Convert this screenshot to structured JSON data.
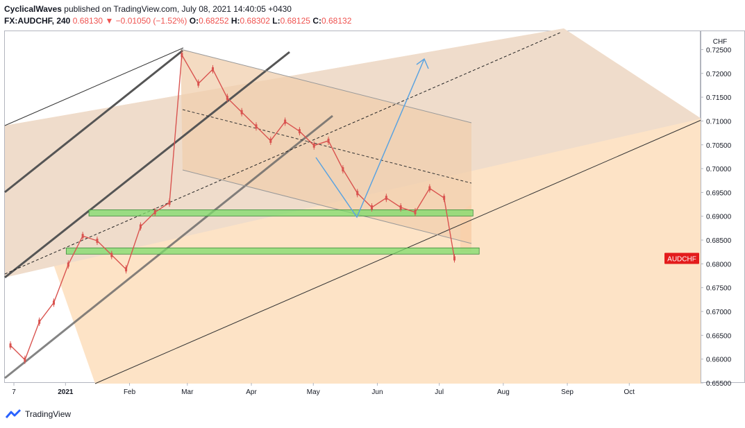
{
  "header": {
    "author": "CyclicalWaves",
    "published": "published on TradingView.com, July 08, 2021 14:40:05 +0430",
    "symbol": "FX:AUDCHF, 240",
    "last": "0.68130",
    "arrow": "▼",
    "change": "−0.01050 (−1.52%)",
    "o_label": "O:",
    "o_val": "0.68252",
    "h_label": "H:",
    "h_val": "0.68302",
    "l_label": "L:",
    "l_val": "0.68125",
    "c_label": "C:",
    "c_val": "0.68132"
  },
  "footer": {
    "brand": "TradingView"
  },
  "chart_data": {
    "type": "line",
    "currency": "CHF",
    "symbol_tag": "AUDCHF",
    "last_value": 0.6813,
    "ylim": [
      0.655,
      0.729
    ],
    "y_ticks": [
      "0.72500",
      "0.72000",
      "0.71500",
      "0.71000",
      "0.70500",
      "0.70000",
      "0.69500",
      "0.69000",
      "0.68500",
      "0.68000",
      "0.67500",
      "0.67000",
      "0.66500",
      "0.66000",
      "0.65500"
    ],
    "x_ticks": [
      "7",
      "2021",
      "Feb",
      "Mar",
      "Apr",
      "May",
      "Jun",
      "Jul",
      "Aug",
      "Sep",
      "Oct"
    ],
    "colors": {
      "up": "#26a69a",
      "down": "#ef5350",
      "candle": "#d9534f",
      "zone": "#7ddc6b",
      "channel": "#f0c8a0",
      "arrow": "#5ba3e0"
    },
    "price_series": {
      "x": [
        "2020-12-05",
        "2020-12-12",
        "2020-12-19",
        "2020-12-26",
        "2021-01-02",
        "2021-01-09",
        "2021-01-16",
        "2021-01-23",
        "2021-01-30",
        "2021-02-06",
        "2021-02-13",
        "2021-02-20",
        "2021-02-26",
        "2021-03-06",
        "2021-03-13",
        "2021-03-20",
        "2021-03-27",
        "2021-04-03",
        "2021-04-10",
        "2021-04-17",
        "2021-04-24",
        "2021-05-01",
        "2021-05-08",
        "2021-05-15",
        "2021-05-22",
        "2021-05-29",
        "2021-06-05",
        "2021-06-12",
        "2021-06-19",
        "2021-06-26",
        "2021-07-03",
        "2021-07-08"
      ],
      "values": [
        0.663,
        0.66,
        0.668,
        0.672,
        0.68,
        0.686,
        0.685,
        0.682,
        0.679,
        0.688,
        0.691,
        0.693,
        0.724,
        0.718,
        0.721,
        0.715,
        0.712,
        0.709,
        0.706,
        0.71,
        0.708,
        0.705,
        0.706,
        0.7,
        0.695,
        0.692,
        0.694,
        0.692,
        0.691,
        0.696,
        0.694,
        0.6813
      ]
    },
    "zones": [
      {
        "from": "2021-01-12",
        "to": "2021-07-17",
        "low": 0.6905,
        "high": 0.6915
      },
      {
        "from": "2021-01-01",
        "to": "2021-07-20",
        "low": 0.6822,
        "high": 0.6835
      }
    ]
  }
}
